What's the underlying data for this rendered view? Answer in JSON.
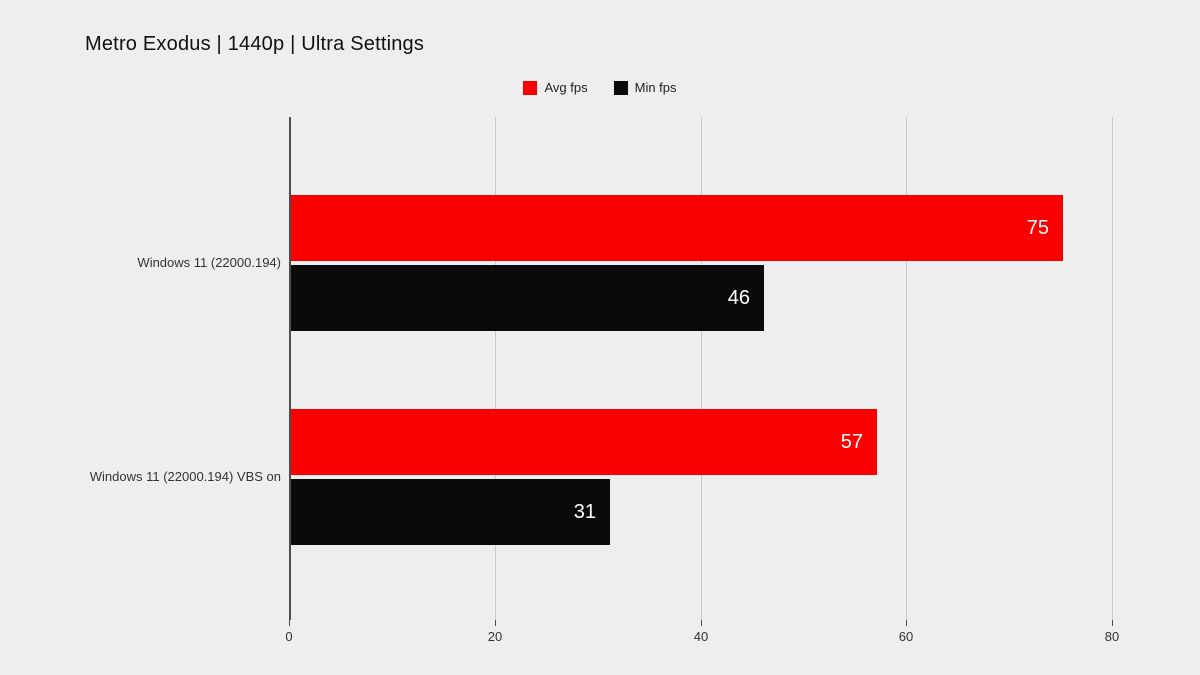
{
  "chart_data": {
    "type": "bar",
    "orientation": "horizontal",
    "title": "Metro Exodus | 1440p | Ultra Settings",
    "categories": [
      "Windows 11 (22000.194)",
      "Windows 11 (22000.194) VBS on"
    ],
    "series": [
      {
        "name": "Avg fps",
        "color": "#f80100",
        "values": [
          75,
          57
        ]
      },
      {
        "name": "Min fps",
        "color": "#0a0a0a",
        "values": [
          46,
          31
        ]
      }
    ],
    "xticks": [
      "0",
      "20",
      "40",
      "60",
      "80"
    ],
    "xtick_values": [
      0,
      20,
      40,
      60,
      80
    ],
    "xlim": [
      0,
      82.7
    ],
    "grid": true,
    "legend_position": "top-center",
    "value_labels": true
  },
  "colors": {
    "background": "#efeeee",
    "gridline": "#c9c9c9",
    "axis": "#4d4d4d",
    "tick_text": "#333333",
    "title_text": "#111111",
    "value_label_text": "#ffffff",
    "avg_fps": "#f80100",
    "min_fps": "#0a0a0a"
  }
}
